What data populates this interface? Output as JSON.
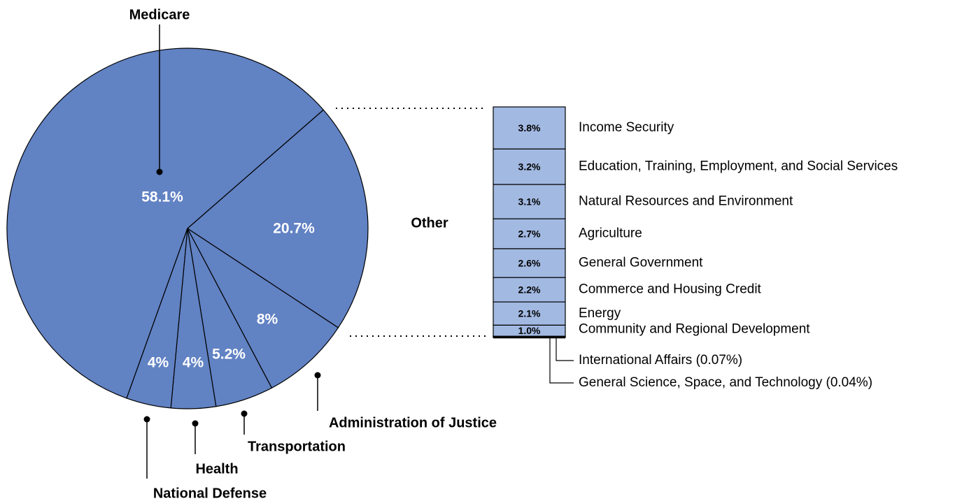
{
  "chart_data": {
    "type": "pie",
    "categories": [
      "Medicare",
      "Other",
      "Administration of Justice",
      "Transportation",
      "Health",
      "National Defense"
    ],
    "values": [
      58.1,
      20.7,
      8,
      5.2,
      4,
      4
    ],
    "value_labels": [
      "58.1%",
      "20.7%",
      "8%",
      "5.2%",
      "4%",
      "4%"
    ],
    "color": "#6182c3",
    "breakdown": {
      "type": "stacked-bar",
      "of": "Other",
      "categories": [
        "Income Security",
        "Education, Training, Employment, and Social Services",
        "Natural Resources and Environment",
        "Agriculture",
        "General Government",
        "Commerce and Housing Credit",
        "Energy",
        "Community and Regional Development",
        "International Affairs",
        "General Science, Space, and Technology"
      ],
      "values": [
        3.8,
        3.2,
        3.1,
        2.7,
        2.6,
        2.2,
        2.1,
        1.0,
        0.07,
        0.04
      ],
      "value_labels": [
        "3.8%",
        "3.2%",
        "3.1%",
        "2.7%",
        "2.6%",
        "2.2%",
        "2.1%",
        "1.0%",
        "(0.07%)",
        "(0.04%)"
      ],
      "color": "#a2b9e2"
    }
  }
}
